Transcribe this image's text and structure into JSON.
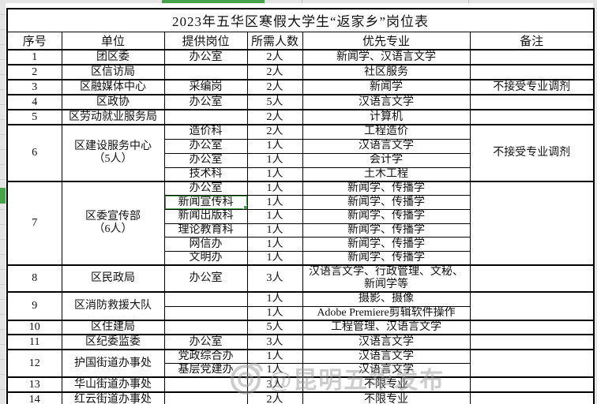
{
  "table": {
    "title": "2023年五华区寒假大学生“返家乡”岗位表",
    "headers": [
      "序号",
      "单位",
      "提供岗位",
      "所需人数",
      "优先专业",
      "备注"
    ],
    "groups": [
      {
        "no": "1",
        "unit": "团区委",
        "remark": "",
        "rows": [
          {
            "post": "办公室",
            "count": "2人",
            "major": "新闻学、汉语言文学"
          }
        ]
      },
      {
        "no": "2",
        "unit": "区信访局",
        "remark": "",
        "rows": [
          {
            "post": "",
            "count": "2人",
            "major": "社区服务"
          }
        ]
      },
      {
        "no": "3",
        "unit": "区融媒体中心",
        "remark": "不接受专业调剂",
        "rows": [
          {
            "post": "采编岗",
            "count": "2人",
            "major": "新闻学"
          }
        ]
      },
      {
        "no": "4",
        "unit": "区政协",
        "remark": "",
        "rows": [
          {
            "post": "办公室",
            "count": "5人",
            "major": "汉语言文学"
          }
        ]
      },
      {
        "no": "5",
        "unit": "区劳动就业服务局",
        "remark": "",
        "rows": [
          {
            "post": "",
            "count": "2人",
            "major": "计算机"
          }
        ]
      },
      {
        "no": "6",
        "unit": "区建设服务中心\n（5人）",
        "remark": "不接受专业调剂",
        "rows": [
          {
            "post": "造价科",
            "count": "2人",
            "major": "工程造价"
          },
          {
            "post": "办公室",
            "count": "1人",
            "major": "汉语言文学"
          },
          {
            "post": "办公室",
            "count": "1人",
            "major": "会计学"
          },
          {
            "post": "技术科",
            "count": "1人",
            "major": "土木工程"
          }
        ]
      },
      {
        "no": "7",
        "unit": "区委宣传部\n（6人）",
        "remark": "",
        "rows": [
          {
            "post": "办公室",
            "count": "1人",
            "major": "新闻学、传播学"
          },
          {
            "post": "新闻宣传科",
            "count": "1人",
            "major": "新闻学、传播学"
          },
          {
            "post": "新闻出版科",
            "count": "1人",
            "major": "新闻学、传播学"
          },
          {
            "post": "理论教育科",
            "count": "1人",
            "major": "新闻学、传播学"
          },
          {
            "post": "网信办",
            "count": "1人",
            "major": "新闻学、传播学"
          },
          {
            "post": "文明办",
            "count": "1人",
            "major": "新闻学、传播学"
          }
        ]
      },
      {
        "no": "8",
        "unit": "区民政局",
        "remark": "",
        "rows": [
          {
            "post": "办公室",
            "count": "3人",
            "major": "汉语言文学、行政管理、文秘、新闻学等"
          }
        ]
      },
      {
        "no": "9",
        "unit": "区消防救援大队",
        "remark": "",
        "rows": [
          {
            "post": "",
            "count": "1人",
            "major": "摄影、摄像"
          },
          {
            "post": "",
            "count": "1人",
            "major": "Adobe Premiere剪辑软件操作"
          }
        ]
      },
      {
        "no": "10",
        "unit": "区住建局",
        "remark": "",
        "rows": [
          {
            "post": "",
            "count": "5人",
            "major": "工程管理、汉语言文学"
          }
        ]
      },
      {
        "no": "11",
        "unit": "区纪委监委",
        "remark": "",
        "rows": [
          {
            "post": "办公室",
            "count": "3人",
            "major": "汉语言文学"
          }
        ]
      },
      {
        "no": "12",
        "unit": "护国街道办事处",
        "remark": "",
        "rows": [
          {
            "post": "党政综合办",
            "count": "1人",
            "major": "汉语言文学"
          },
          {
            "post": "基层党建办",
            "count": "1人",
            "major": "汉语言文学"
          }
        ]
      },
      {
        "no": "13",
        "unit": "华山街道办事处",
        "remark": "",
        "rows": [
          {
            "post": "",
            "count": "3人",
            "major": "不限专业"
          }
        ]
      },
      {
        "no": "14",
        "unit": "红云街道办事处",
        "remark": "",
        "rows": [
          {
            "post": "",
            "count": "2人",
            "major": "不限专业"
          }
        ]
      }
    ],
    "selection": {
      "group_index": 6,
      "row_index": 1,
      "field": "post",
      "color": "#45a249"
    }
  },
  "watermark": {
    "text": "@昆明五华发布",
    "icon": "weibo-eye-icon",
    "color": "#9a9a9a"
  }
}
